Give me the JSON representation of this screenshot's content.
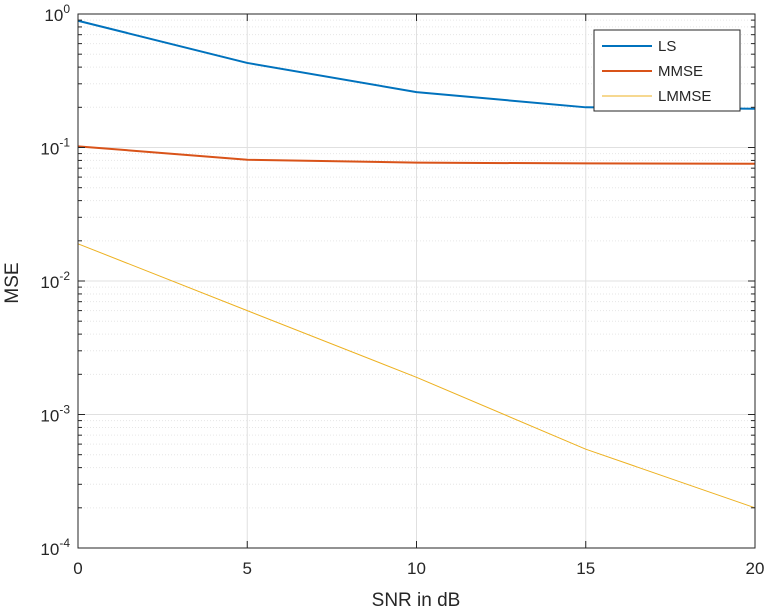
{
  "chart_data": {
    "type": "line",
    "title": "",
    "xlabel": "SNR in dB",
    "ylabel": "MSE",
    "x": [
      0,
      5,
      10,
      15,
      20
    ],
    "xlim": [
      0,
      20
    ],
    "ylim": [
      0.0001,
      1
    ],
    "yscale": "log",
    "x_ticks": [
      0,
      5,
      10,
      15,
      20
    ],
    "y_ticks": [
      {
        "value": 1,
        "base": "10",
        "exp": "0"
      },
      {
        "value": 0.1,
        "base": "10",
        "exp": "-1"
      },
      {
        "value": 0.01,
        "base": "10",
        "exp": "-2"
      },
      {
        "value": 0.001,
        "base": "10",
        "exp": "-3"
      },
      {
        "value": 0.0001,
        "base": "10",
        "exp": "-4"
      }
    ],
    "grid": true,
    "legend_position": "top-right",
    "series": [
      {
        "name": "LS",
        "color": "#0072BD",
        "values": [
          0.89,
          0.43,
          0.26,
          0.2,
          0.195
        ]
      },
      {
        "name": "MMSE",
        "color": "#D95319",
        "values": [
          0.102,
          0.081,
          0.077,
          0.076,
          0.0755
        ]
      },
      {
        "name": "LMMSE",
        "color": "#EDB120",
        "values": [
          0.019,
          0.006,
          0.0019,
          0.00055,
          0.0002
        ]
      }
    ]
  }
}
